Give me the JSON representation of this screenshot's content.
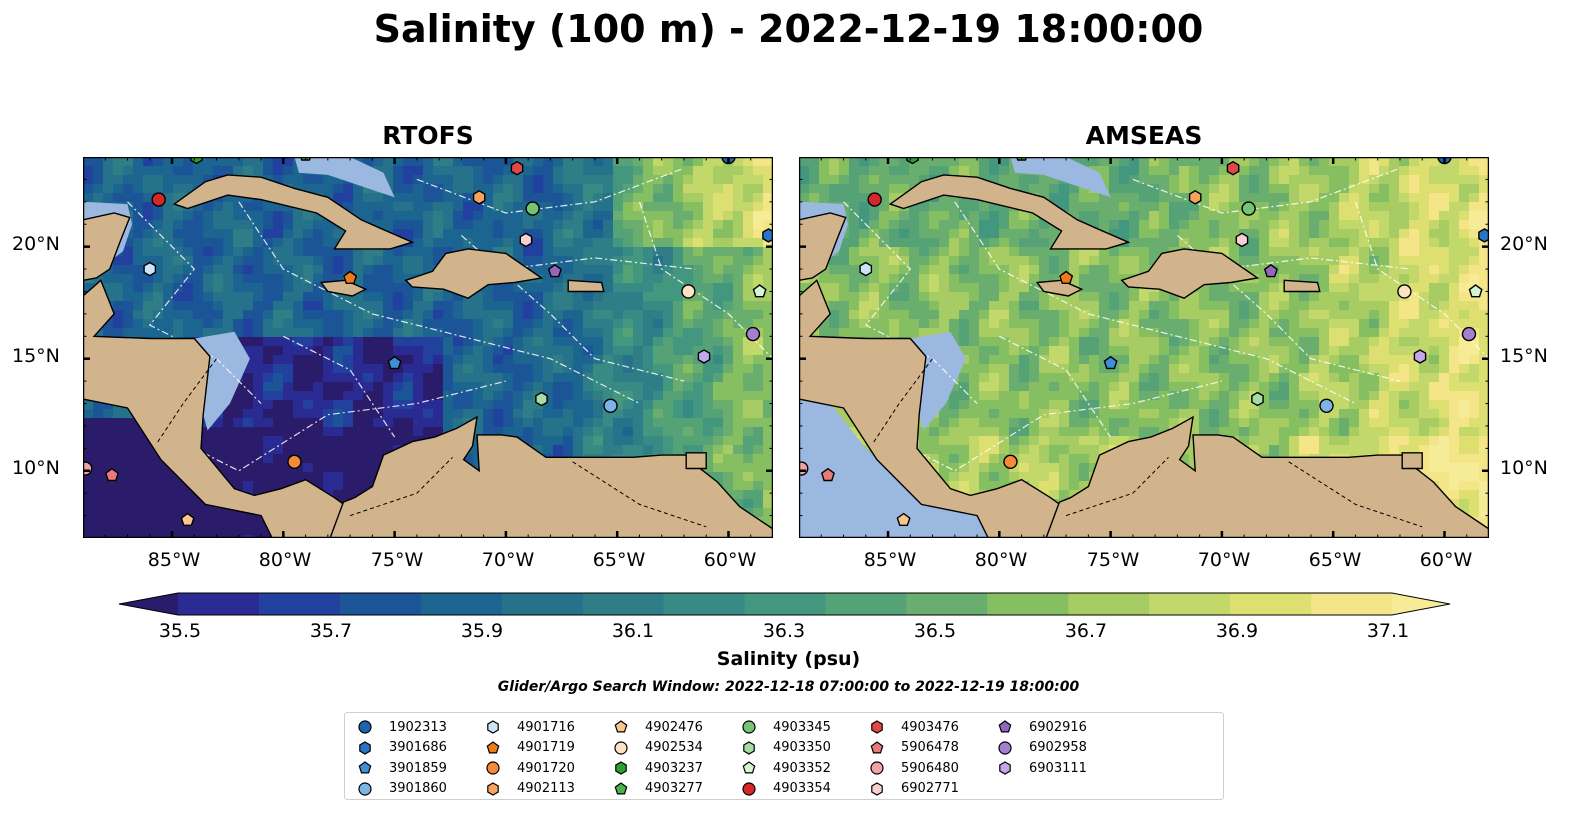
{
  "title": "Salinity (100 m) - 2022-12-19 18:00:00",
  "panels": [
    {
      "title": "RTOFS",
      "mode": "rtofs"
    },
    {
      "title": "AMSEAS",
      "mode": "amseas"
    }
  ],
  "map": {
    "lon_range": [
      -89,
      -58
    ],
    "lat_range": [
      7,
      24
    ],
    "lon_ticks": [
      -85,
      -80,
      -75,
      -70,
      -65,
      -60
    ],
    "lon_tick_labels": [
      "85°W",
      "80°W",
      "75°W",
      "70°W",
      "65°W",
      "60°W"
    ],
    "lat_ticks": [
      10,
      15,
      20
    ],
    "lat_tick_labels": [
      "10°N",
      "15°N",
      "20°N"
    ],
    "colors": {
      "land": "#d2b48c",
      "shallow_water": "#9bb8e1",
      "coast": "#000000"
    }
  },
  "colorbar": {
    "label": "Salinity (psu)",
    "min": 35.4,
    "max": 37.2,
    "step": 0.1,
    "ticks": [
      35.5,
      35.7,
      35.9,
      36.1,
      36.3,
      36.5,
      36.7,
      36.9,
      37.1
    ],
    "tick_labels": [
      "35.5",
      "35.7",
      "35.9",
      "36.1",
      "36.3",
      "36.5",
      "36.7",
      "36.9",
      "37.1"
    ],
    "colormap": "haline",
    "colors": [
      "#2a1c6b",
      "#2a2a93",
      "#22409e",
      "#1b5497",
      "#1c6590",
      "#26728b",
      "#2f7e87",
      "#388a84",
      "#43977f",
      "#55a277",
      "#6aae6f",
      "#86bf62",
      "#a6cc63",
      "#c3d86b",
      "#dde071",
      "#f4e588",
      "#f6eb96"
    ],
    "extend": "both"
  },
  "search_window": "Glider/Argo Search Window: 2022-12-18 07:00:00 to 2022-12-19 18:00:00",
  "floats": [
    {
      "id": "1902313",
      "marker": "circle",
      "color": "#1f63b3",
      "lon": -60,
      "lat": 24
    },
    {
      "id": "3901686",
      "marker": "hexagon",
      "color": "#2a74c4",
      "lon": -58.2,
      "lat": 20.5
    },
    {
      "id": "3901859",
      "marker": "pentagon",
      "color": "#3d8fd6",
      "lon": -75,
      "lat": 14.8
    },
    {
      "id": "3901860",
      "marker": "circle",
      "color": "#7db4e6",
      "lon": -65.3,
      "lat": 12.9
    },
    {
      "id": "4901716",
      "marker": "hexagon",
      "color": "#c9e6f8",
      "lon": -86,
      "lat": 19
    },
    {
      "id": "4901719",
      "marker": "pentagon",
      "color": "#f07a1a",
      "lon": -77,
      "lat": 18.6
    },
    {
      "id": "4901720",
      "marker": "circle",
      "color": "#f58b3a",
      "lon": -79.5,
      "lat": 10.4
    },
    {
      "id": "4902113",
      "marker": "hexagon",
      "color": "#f7a45e",
      "lon": -71.2,
      "lat": 22.2
    },
    {
      "id": "4902476",
      "marker": "pentagon",
      "color": "#fbc58c",
      "lon": -84.3,
      "lat": 7.8
    },
    {
      "id": "4902534",
      "marker": "circle",
      "color": "#fde2c4",
      "lon": -61.8,
      "lat": 18
    },
    {
      "id": "4903237",
      "marker": "hexagon",
      "color": "#2ca02c",
      "lon": -83.9,
      "lat": 24
    },
    {
      "id": "4903277",
      "marker": "pentagon",
      "color": "#4bb24b",
      "lon": -79,
      "lat": 24.1
    },
    {
      "id": "4903345",
      "marker": "circle",
      "color": "#74c474",
      "lon": -68.8,
      "lat": 21.7
    },
    {
      "id": "4903350",
      "marker": "hexagon",
      "color": "#a5dda5",
      "lon": -68.4,
      "lat": 13.2
    },
    {
      "id": "4903352",
      "marker": "pentagon",
      "color": "#d4f5d4",
      "lon": -58.6,
      "lat": 18
    },
    {
      "id": "4903354",
      "marker": "circle",
      "color": "#d62728",
      "lon": -85.6,
      "lat": 22.1
    },
    {
      "id": "4903476",
      "marker": "hexagon",
      "color": "#e04848",
      "lon": -69.5,
      "lat": 23.5
    },
    {
      "id": "5906478",
      "marker": "pentagon",
      "color": "#e87a7a",
      "lon": -87.7,
      "lat": 9.8
    },
    {
      "id": "5906480",
      "marker": "circle",
      "color": "#f2a3a3",
      "lon": -88.9,
      "lat": 10.1
    },
    {
      "id": "6902771",
      "marker": "hexagon",
      "color": "#f9d0d0",
      "lon": -69.1,
      "lat": 20.3
    },
    {
      "id": "6902916",
      "marker": "pentagon",
      "color": "#9467bd",
      "lon": -67.8,
      "lat": 18.9
    },
    {
      "id": "6902958",
      "marker": "circle",
      "color": "#a57fd0",
      "lon": -58.9,
      "lat": 16.1
    },
    {
      "id": "6903111",
      "marker": "hexagon",
      "color": "#c7a7ec",
      "lon": -61.1,
      "lat": 15.1
    }
  ]
}
